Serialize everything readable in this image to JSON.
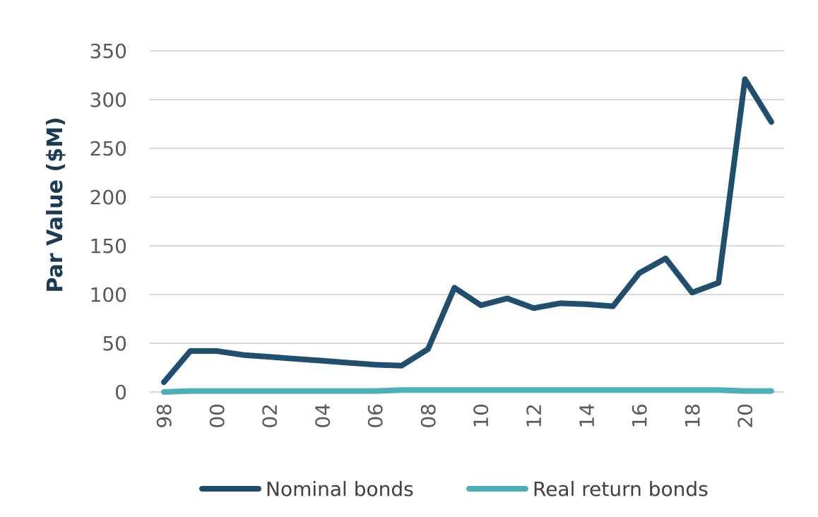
{
  "chart_data": {
    "type": "line",
    "ylabel": "Par Value ($M)",
    "xlabel": "",
    "ylim": [
      0,
      350
    ],
    "yticks": [
      0,
      50,
      100,
      150,
      200,
      250,
      300,
      350
    ],
    "x": [
      "98",
      "99",
      "00",
      "01",
      "02",
      "03",
      "04",
      "05",
      "06",
      "07",
      "08",
      "09",
      "10",
      "11",
      "12",
      "13",
      "14",
      "15",
      "16",
      "17",
      "18",
      "19",
      "20",
      "21"
    ],
    "xtick_labels": [
      "98",
      "00",
      "02",
      "04",
      "06",
      "08",
      "10",
      "12",
      "14",
      "16",
      "18",
      "20"
    ],
    "grid": true,
    "legend": "bottom",
    "series": [
      {
        "name": "Nominal bonds",
        "color": "#1f4e6e",
        "values": [
          10,
          42,
          42,
          38,
          36,
          34,
          32,
          30,
          28,
          27,
          44,
          107,
          89,
          96,
          86,
          91,
          90,
          88,
          122,
          137,
          102,
          112,
          321,
          277
        ]
      },
      {
        "name": "Real return bonds",
        "color": "#4db0b8",
        "values": [
          0,
          1,
          1,
          1,
          1,
          1,
          1,
          1,
          1,
          2,
          2,
          2,
          2,
          2,
          2,
          2,
          2,
          2,
          2,
          2,
          2,
          2,
          1,
          1
        ]
      }
    ]
  }
}
